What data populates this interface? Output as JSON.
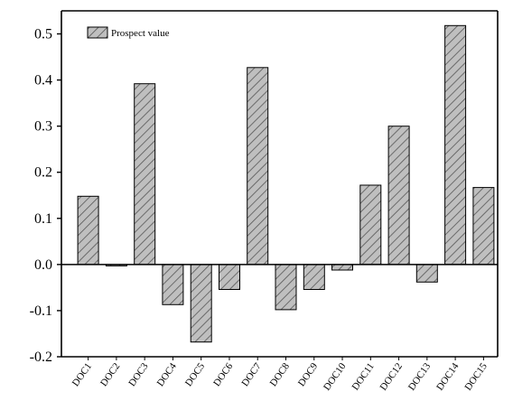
{
  "chart_data": {
    "type": "bar",
    "categories": [
      "DOC1",
      "DOC2",
      "DOC3",
      "DOC4",
      "DOC5",
      "DOC6",
      "DOC7",
      "DOC8",
      "DOC9",
      "DOC10",
      "DOC11",
      "DOC12",
      "DOC13",
      "DOC14",
      "DOC15"
    ],
    "series": [
      {
        "name": "Prospect value",
        "values": [
          0.148,
          -0.003,
          0.392,
          -0.087,
          -0.168,
          -0.054,
          0.427,
          -0.098,
          -0.054,
          -0.012,
          0.172,
          0.3,
          -0.038,
          0.518,
          0.167
        ]
      }
    ],
    "ylim": [
      -0.2,
      0.55
    ],
    "yticks": [
      -0.2,
      -0.1,
      0.0,
      0.1,
      0.2,
      0.3,
      0.4,
      0.5
    ],
    "ytick_labels": [
      "-0.2",
      "-0.1",
      "0.0",
      "0.1",
      "0.2",
      "0.3",
      "0.4",
      "0.5"
    ],
    "legend": "top-left",
    "grid": false,
    "bar_fill": "#bfbfbf",
    "hatch_color": "#555555",
    "axis_color": "#000000"
  }
}
